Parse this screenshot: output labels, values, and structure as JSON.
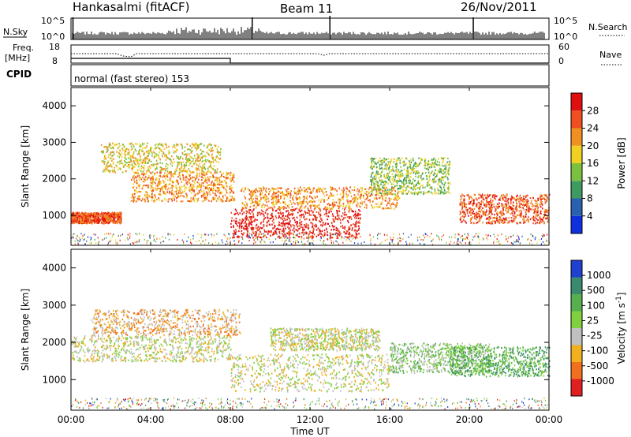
{
  "header": {
    "title": "Hankasalmi (fitACF)",
    "beam": "Beam 11",
    "date": "26/Nov/2011"
  },
  "strip": {
    "nsky_label": "N.Sky",
    "nsearch_label": "N.Search",
    "count_top": "10^5",
    "count_bottom": "10^0",
    "freq_label_1": "Freq.",
    "freq_label_2": "[MHz]",
    "freq_top": "18",
    "freq_bottom": "8",
    "nave_label": "Nave",
    "nave_top": "60",
    "nave_bottom": "0",
    "cpid_label": "CPID",
    "cpid_text": "normal (fast stereo) 153"
  },
  "xaxis": {
    "title": "Time UT",
    "ticks": [
      "00:00",
      "04:00",
      "08:00",
      "12:00",
      "16:00",
      "20:00",
      "00:00"
    ]
  },
  "chart_data": [
    {
      "type": "heatmap",
      "name": "Power",
      "ylabel": "Slant Range [km]",
      "y_ticks": [
        1000,
        2000,
        3000,
        4000
      ],
      "ylim": [
        180,
        4500
      ],
      "xlim_hours": [
        0,
        24
      ],
      "colorbar": {
        "label": "Power [dB]",
        "ticks": [
          "4",
          "8",
          "12",
          "16",
          "20",
          "24",
          "28"
        ],
        "colors": [
          "#1030e0",
          "#2a60b0",
          "#3f9a62",
          "#7cc040",
          "#f0d020",
          "#f09020",
          "#f05020",
          "#e01010"
        ]
      },
      "features": [
        {
          "t0": 0.0,
          "t1": 2.5,
          "r0": 800,
          "r1": 1100,
          "level": 6
        },
        {
          "t0": 1.5,
          "t1": 7.5,
          "r0": 2200,
          "r1": 3000,
          "level": 4
        },
        {
          "t0": 3.0,
          "t1": 8.2,
          "r0": 1400,
          "r1": 2200,
          "level": 5
        },
        {
          "t0": 8.0,
          "t1": 14.5,
          "r0": 400,
          "r1": 1200,
          "level": 7
        },
        {
          "t0": 8.5,
          "t1": 16.5,
          "r0": 1200,
          "r1": 1800,
          "level": 5
        },
        {
          "t0": 15.0,
          "t1": 19.0,
          "r0": 1600,
          "r1": 2600,
          "level": 3
        },
        {
          "t0": 19.5,
          "t1": 24.0,
          "r0": 800,
          "r1": 1600,
          "level": 6
        }
      ]
    },
    {
      "type": "heatmap",
      "name": "Velocity",
      "ylabel": "Slant Range [km]",
      "y_ticks": [
        1000,
        2000,
        3000,
        4000
      ],
      "ylim": [
        180,
        4500
      ],
      "xlim_hours": [
        0,
        24
      ],
      "colorbar": {
        "label": "Velocity [m s^-1]",
        "ticks": [
          "1000",
          "500",
          "100",
          "25",
          "-25",
          "-100",
          "-500",
          "-1000"
        ],
        "colors": [
          "#2040d0",
          "#3a8a70",
          "#56b050",
          "#80d040",
          "#c0c0c0",
          "#f0b020",
          "#f07020",
          "#e02020"
        ]
      },
      "features": [
        {
          "t0": 0.0,
          "t1": 8.0,
          "r0": 1500,
          "r1": 2200,
          "level": 4
        },
        {
          "t0": 1.0,
          "t1": 8.5,
          "r0": 2200,
          "r1": 2900,
          "level": 5
        },
        {
          "t0": 8.0,
          "t1": 16.0,
          "r0": 700,
          "r1": 1700,
          "level": 4
        },
        {
          "t0": 10.0,
          "t1": 15.5,
          "r0": 1800,
          "r1": 2400,
          "level": 4
        },
        {
          "t0": 16.0,
          "t1": 21.0,
          "r0": 1200,
          "r1": 2000,
          "level": 3
        },
        {
          "t0": 19.0,
          "t1": 24.0,
          "r0": 1100,
          "r1": 1900,
          "level": 2
        }
      ]
    }
  ]
}
